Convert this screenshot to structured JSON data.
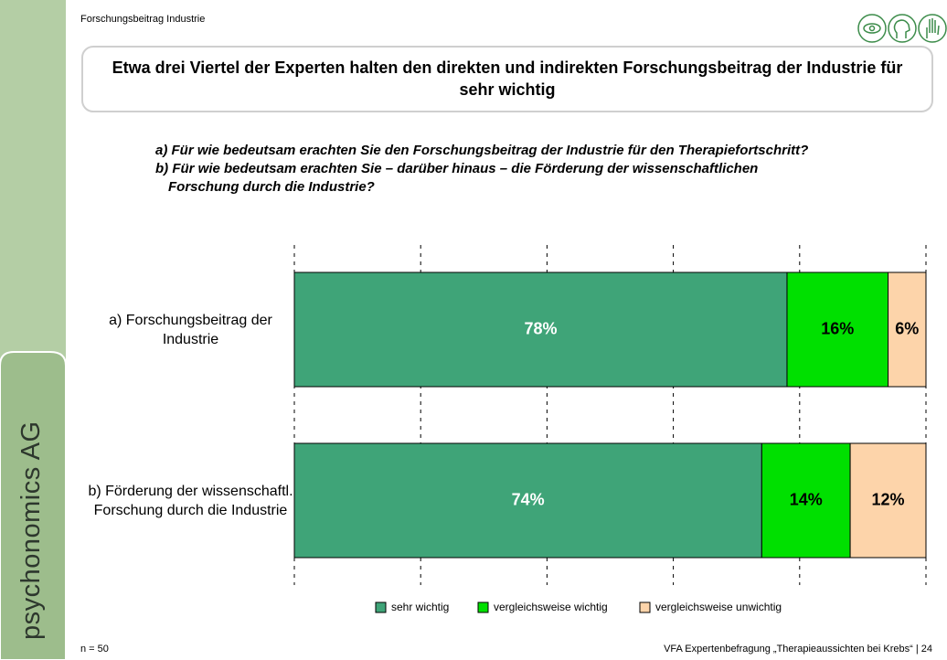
{
  "header": {
    "section": "Forschungsbeitrag Industrie",
    "title": "Etwa drei Viertel der Experten halten den direkten und indirekten Forschungsbeitrag der Industrie für sehr wichtig"
  },
  "questions": [
    "a) Für wie bedeutsam erachten Sie den Forschungsbeitrag der Industrie für den Therapiefortschritt?",
    "b) Für wie bedeutsam erachten Sie – darüber hinaus – die Förderung der wissenschaftlichen Forschung durch die Industrie?"
  ],
  "brand": "psychonomics AG",
  "chart_data": {
    "type": "stacked_barh",
    "categories": [
      "a) Forschungsbeitrag der Industrie",
      "b) Förderung der wissenschaftl. Forschung durch die Industrie"
    ],
    "series": [
      {
        "name": "sehr wichtig",
        "color": "#3fa478",
        "label_color": "#ffffff",
        "values": [
          78,
          74
        ],
        "value_labels": [
          "78%",
          "74%"
        ]
      },
      {
        "name": "vergleichsweise wichtig",
        "color": "#00e000",
        "label_color": "#000000",
        "values": [
          16,
          14
        ],
        "value_labels": [
          "16%",
          "14%"
        ]
      },
      {
        "name": "vergleichsweise unwichtig",
        "color": "#fdd4aa",
        "label_color": "#000000",
        "values": [
          6,
          12
        ],
        "value_labels": [
          "6%",
          "12%"
        ]
      }
    ],
    "xlim": [
      0,
      100
    ],
    "xticks": [
      0,
      20,
      40,
      60,
      80,
      100
    ],
    "grid": true,
    "legend": "bottom"
  },
  "footer": {
    "left": "n = 50",
    "right": "VFA Expertenbefragung „Therapieaussichten bei Krebs“ | 24"
  }
}
